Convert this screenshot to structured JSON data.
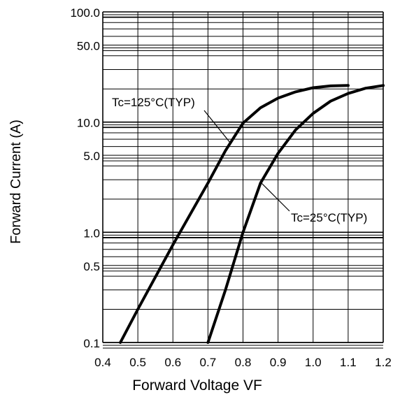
{
  "chart_data": {
    "type": "line",
    "x_label": "Forward Voltage VF",
    "y_label": "Forward Current (A)",
    "x_range": [
      0.4,
      1.2
    ],
    "y_range": [
      0.1,
      100
    ],
    "y_scale": "log",
    "grid": true,
    "x_ticks": [
      "0.4",
      "0.5",
      "0.6",
      "0.7",
      "0.8",
      "0.9",
      "1.0",
      "1.1",
      "1.2"
    ],
    "y_ticks": [
      {
        "value": 100,
        "label": "100.0"
      },
      {
        "value": 50,
        "label": "50.0"
      },
      {
        "value": 10,
        "label": "10.0"
      },
      {
        "value": 5,
        "label": "5.0"
      },
      {
        "value": 1,
        "label": "1.0"
      },
      {
        "value": 0.5,
        "label": "0.5"
      },
      {
        "value": 0.1,
        "label": "0.1"
      }
    ],
    "series": [
      {
        "name": "Tc=125°C(TYP)",
        "points": [
          [
            0.45,
            0.1
          ],
          [
            0.5,
            0.2
          ],
          [
            0.6,
            0.77
          ],
          [
            0.7,
            2.8
          ],
          [
            0.75,
            5.5
          ],
          [
            0.8,
            9.8
          ],
          [
            0.85,
            13.5
          ],
          [
            0.9,
            16.5
          ],
          [
            0.95,
            18.8
          ],
          [
            1.0,
            20.5
          ],
          [
            1.05,
            21.3
          ],
          [
            1.1,
            21.5
          ]
        ]
      },
      {
        "name": "Tc=25°C(TYP)",
        "points": [
          [
            0.7,
            0.1
          ],
          [
            0.75,
            0.3
          ],
          [
            0.8,
            1.0
          ],
          [
            0.85,
            2.8
          ],
          [
            0.9,
            5.2
          ],
          [
            0.95,
            8.5
          ],
          [
            1.0,
            12.0
          ],
          [
            1.05,
            15.5
          ],
          [
            1.1,
            18.2
          ],
          [
            1.15,
            20.3
          ],
          [
            1.2,
            21.5
          ]
        ]
      }
    ]
  }
}
